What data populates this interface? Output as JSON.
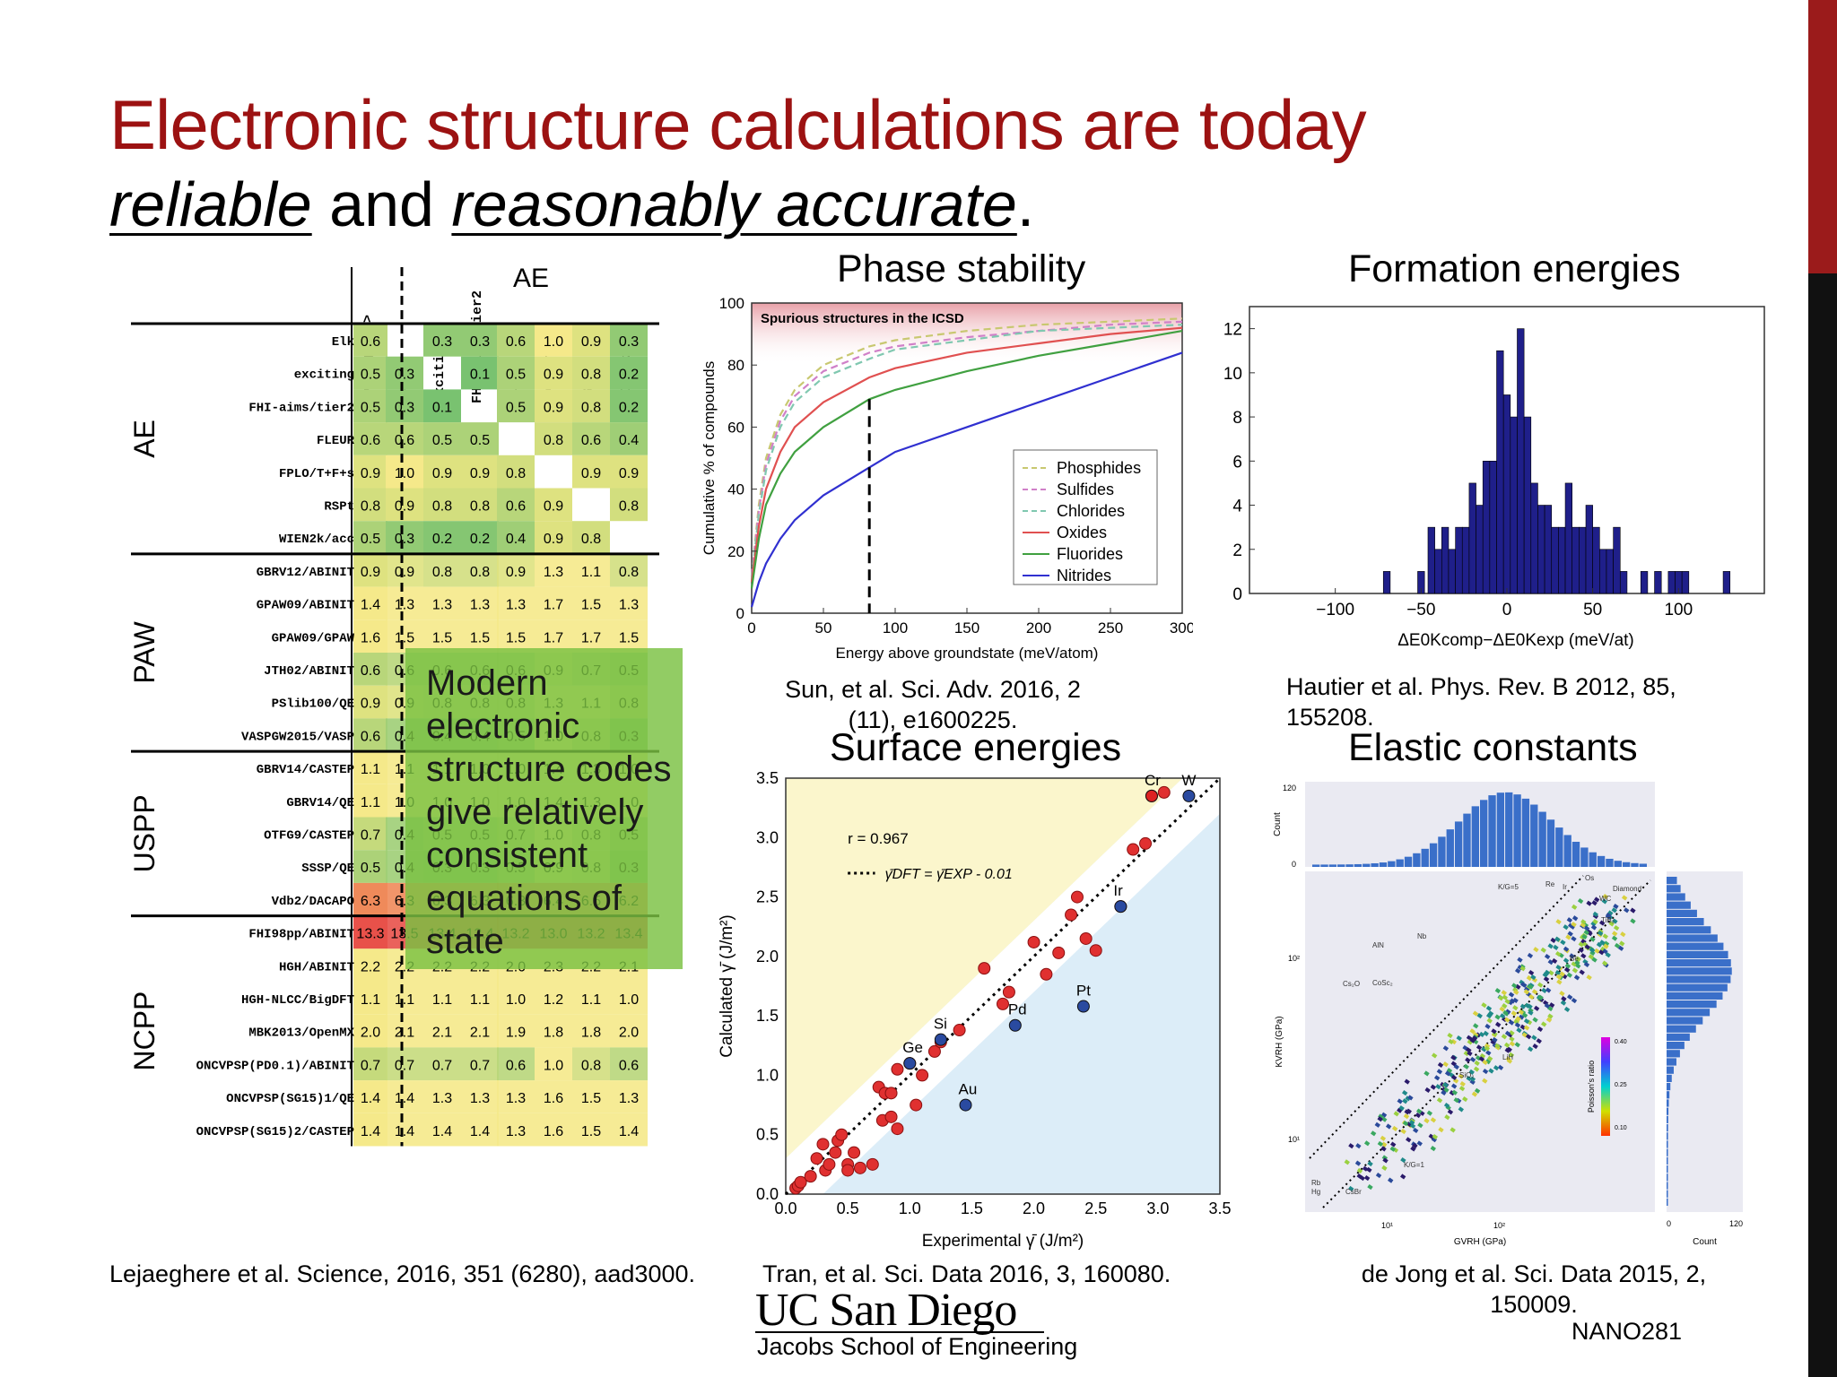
{
  "slide": {
    "title_line1": "Electronic structure calculations are today",
    "title_line2_part1": "reliable",
    "title_line2_part2": " and ",
    "title_line2_part3": "reasonably accurate",
    "title_line2_part4": ".",
    "page_label": "NANO281",
    "logo_main": "UC San Diego",
    "logo_sub": "Jacobs School of Engineering",
    "colors": {
      "title_red": "#9c1212",
      "callout_green": "#7ac142",
      "side_red": "#9b1b1b"
    }
  },
  "panels": {
    "phase": {
      "title": "Phase stability",
      "citation": "Sun, et al. Sci. Adv. 2016, 2 (11), e1600225."
    },
    "formation": {
      "title": "Formation energies",
      "citation": "Hautier et al.  Phys. Rev. B 2012, 85, 155208."
    },
    "surface": {
      "title": "Surface energies",
      "citation": "Tran, et al. Sci. Data 2016, 3, 160080."
    },
    "elastic": {
      "title": "Elastic constants",
      "citation": "de Jong et al. Sci. Data 2015, 2, 150009."
    },
    "table": {
      "citation": "Lejaeghere et al. Science, 2016, 351 (6280), aad3000."
    }
  },
  "callout": {
    "text": "Modern electronic structure codes give relatively consistent equations of state"
  },
  "eos_table": {
    "top_group": "AE",
    "columns": [
      "average <Δ>",
      "Elk",
      "exciting",
      "FHI-aims/tier2",
      "FLEUR",
      "FPLO/T+F+s",
      "RSPt",
      "WIEN2k/acc"
    ],
    "groups": [
      {
        "name": "AE",
        "rows": [
          {
            "code": "Elk",
            "avg": "0.6",
            "vals": [
              "",
              "0.3",
              "0.3",
              "0.6",
              "1.0",
              "0.9",
              "0.3"
            ]
          },
          {
            "code": "exciting",
            "avg": "0.5",
            "vals": [
              "0.3",
              "",
              "0.1",
              "0.5",
              "0.9",
              "0.8",
              "0.2"
            ]
          },
          {
            "code": "FHI-aims/tier2",
            "avg": "0.5",
            "vals": [
              "0.3",
              "0.1",
              "",
              "0.5",
              "0.9",
              "0.8",
              "0.2"
            ]
          },
          {
            "code": "FLEUR",
            "avg": "0.6",
            "vals": [
              "0.6",
              "0.5",
              "0.5",
              "",
              "0.8",
              "0.6",
              "0.4"
            ]
          },
          {
            "code": "FPLO/T+F+s",
            "avg": "0.9",
            "vals": [
              "1.0",
              "0.9",
              "0.9",
              "0.8",
              "",
              "0.9",
              "0.9"
            ]
          },
          {
            "code": "RSPt",
            "avg": "0.8",
            "vals": [
              "0.9",
              "0.8",
              "0.8",
              "0.6",
              "0.9",
              "",
              "0.8"
            ]
          },
          {
            "code": "WIEN2k/acc",
            "avg": "0.5",
            "vals": [
              "0.3",
              "0.2",
              "0.2",
              "0.4",
              "0.9",
              "0.8",
              ""
            ]
          }
        ]
      },
      {
        "name": "PAW",
        "rows": [
          {
            "code": "GBRV12/ABINIT",
            "avg": "0.9",
            "vals": [
              "0.9",
              "0.8",
              "0.8",
              "0.9",
              "1.3",
              "1.1",
              "0.8"
            ]
          },
          {
            "code": "GPAW09/ABINIT",
            "avg": "1.4",
            "vals": [
              "1.3",
              "1.3",
              "1.3",
              "1.3",
              "1.7",
              "1.5",
              "1.3"
            ]
          },
          {
            "code": "GPAW09/GPAW",
            "avg": "1.6",
            "vals": [
              "1.5",
              "1.5",
              "1.5",
              "1.5",
              "1.7",
              "1.7",
              "1.5"
            ]
          },
          {
            "code": "JTH02/ABINIT",
            "avg": "0.6",
            "vals": [
              "0.6",
              "0.6",
              "0.6",
              "0.6",
              "0.9",
              "0.7",
              "0.5"
            ]
          },
          {
            "code": "PSlib100/QE",
            "avg": "0.9",
            "vals": [
              "0.9",
              "0.8",
              "0.8",
              "0.8",
              "1.3",
              "1.1",
              "0.8"
            ]
          },
          {
            "code": "VASPGW2015/VASP",
            "avg": "0.6",
            "vals": [
              "0.4",
              "0.4",
              "0.4",
              "0.5",
              "1.0",
              "0.8",
              "0.3"
            ]
          }
        ]
      },
      {
        "name": "USPP",
        "rows": [
          {
            "code": "GBRV14/CASTEP",
            "avg": "1.1",
            "vals": [
              "1.1",
              "1.1",
              "1.0",
              "1.0",
              "1.4",
              "1.3",
              "1.0"
            ]
          },
          {
            "code": "GBRV14/QE",
            "avg": "1.1",
            "vals": [
              "1.0",
              "1.0",
              "1.0",
              "1.0",
              "1.4",
              "1.3",
              "1.0"
            ]
          },
          {
            "code": "OTFG9/CASTEP",
            "avg": "0.7",
            "vals": [
              "0.4",
              "0.5",
              "0.5",
              "0.7",
              "1.0",
              "0.8",
              "0.5"
            ]
          },
          {
            "code": "SSSP/QE",
            "avg": "0.5",
            "vals": [
              "0.4",
              "0.3",
              "0.3",
              "0.5",
              "0.9",
              "0.8",
              "0.3"
            ]
          },
          {
            "code": "Vdb2/DACAPO",
            "avg": "6.3",
            "vals": [
              "6.3",
              "6.3",
              "6.3",
              "6.3",
              "6.4",
              "6.5",
              "6.2"
            ]
          }
        ]
      },
      {
        "name": "NCPP",
        "rows": [
          {
            "code": "FHI98pp/ABINIT",
            "avg": "13.3",
            "vals": [
              "13.5",
              "13.4",
              "13.4",
              "13.2",
              "13.0",
              "13.2",
              "13.4"
            ]
          },
          {
            "code": "HGH/ABINIT",
            "avg": "2.2",
            "vals": [
              "2.2",
              "2.2",
              "2.2",
              "2.0",
              "2.3",
              "2.2",
              "2.1"
            ]
          },
          {
            "code": "HGH-NLCC/BigDFT",
            "avg": "1.1",
            "vals": [
              "1.1",
              "1.1",
              "1.1",
              "1.0",
              "1.2",
              "1.1",
              "1.0"
            ]
          },
          {
            "code": "MBK2013/OpenMX",
            "avg": "2.0",
            "vals": [
              "2.1",
              "2.1",
              "2.1",
              "1.9",
              "1.8",
              "1.8",
              "2.0"
            ]
          },
          {
            "code": "ONCVPSP(PD0.1)/ABINIT",
            "avg": "0.7",
            "vals": [
              "0.7",
              "0.7",
              "0.7",
              "0.6",
              "1.0",
              "0.8",
              "0.6"
            ]
          },
          {
            "code": "ONCVPSP(SG15)1/QE",
            "avg": "1.4",
            "vals": [
              "1.4",
              "1.3",
              "1.3",
              "1.3",
              "1.6",
              "1.5",
              "1.3"
            ]
          },
          {
            "code": "ONCVPSP(SG15)2/CASTEP",
            "avg": "1.4",
            "vals": [
              "1.4",
              "1.4",
              "1.4",
              "1.3",
              "1.6",
              "1.5",
              "1.4"
            ]
          }
        ]
      }
    ]
  },
  "chart_data": [
    {
      "id": "phase",
      "type": "line",
      "xlabel": "Energy above groundstate (meV/atom)",
      "ylabel": "Cumulative % of compounds",
      "xlim": [
        0,
        300
      ],
      "ylim": [
        0,
        100
      ],
      "xticks": [
        "0",
        "50",
        "100",
        "150",
        "200",
        "250",
        "300"
      ],
      "yticks": [
        "0",
        "20",
        "40",
        "60",
        "80",
        "100"
      ],
      "annotation": "Spurious structures in the ICSD",
      "marker_x": 82,
      "legend": "right",
      "series": [
        {
          "name": "Phosphides",
          "style": "dashed",
          "color": "#c8c870",
          "x": [
            0,
            5,
            10,
            20,
            30,
            50,
            82,
            100,
            150,
            200,
            250,
            300
          ],
          "y": [
            12,
            35,
            50,
            64,
            72,
            80,
            86,
            88,
            91,
            93,
            94,
            95
          ]
        },
        {
          "name": "Sulfides",
          "style": "dashed",
          "color": "#d080c8",
          "x": [
            0,
            5,
            10,
            20,
            30,
            50,
            82,
            100,
            150,
            200,
            250,
            300
          ],
          "y": [
            12,
            33,
            48,
            62,
            70,
            78,
            84,
            86,
            89,
            91,
            93,
            94
          ]
        },
        {
          "name": "Chlorides",
          "style": "dashed",
          "color": "#80c8b0",
          "x": [
            0,
            5,
            10,
            20,
            30,
            50,
            82,
            100,
            150,
            200,
            250,
            300
          ],
          "y": [
            11,
            32,
            46,
            60,
            68,
            76,
            82,
            85,
            88,
            91,
            92,
            93
          ]
        },
        {
          "name": "Oxides",
          "style": "solid",
          "color": "#e05050",
          "x": [
            0,
            5,
            10,
            20,
            30,
            50,
            82,
            100,
            150,
            200,
            250,
            300
          ],
          "y": [
            10,
            28,
            40,
            52,
            60,
            68,
            76,
            79,
            84,
            87,
            90,
            92
          ]
        },
        {
          "name": "Fluorides",
          "style": "solid",
          "color": "#40a040",
          "x": [
            0,
            5,
            10,
            20,
            30,
            50,
            82,
            100,
            150,
            200,
            250,
            300
          ],
          "y": [
            8,
            24,
            35,
            45,
            52,
            60,
            69,
            72,
            78,
            83,
            87,
            91
          ]
        },
        {
          "name": "Nitrides",
          "style": "solid",
          "color": "#3030d0",
          "x": [
            0,
            5,
            10,
            20,
            30,
            50,
            82,
            100,
            150,
            200,
            250,
            300
          ],
          "y": [
            2,
            10,
            16,
            24,
            30,
            38,
            47,
            52,
            60,
            68,
            76,
            84
          ]
        }
      ]
    },
    {
      "id": "formation",
      "type": "bar",
      "xlabel": "ΔE0Kcomp−ΔE0Kexp (meV/at)",
      "xlim": [
        -150,
        150
      ],
      "ylim": [
        0,
        13
      ],
      "xticks": [
        "−100",
        "−50",
        "0",
        "50",
        "100"
      ],
      "yticks": [
        "0",
        "2",
        "4",
        "6",
        "8",
        "10",
        "12"
      ],
      "bar_width": 4,
      "color": "#1f1f8a",
      "x": [
        -70,
        -50,
        -44,
        -40,
        -36,
        -32,
        -28,
        -24,
        -20,
        -16,
        -12,
        -8,
        -4,
        0,
        4,
        8,
        12,
        16,
        20,
        24,
        28,
        32,
        36,
        40,
        44,
        48,
        52,
        56,
        60,
        64,
        68,
        80,
        88,
        96,
        100,
        104,
        128
      ],
      "values": [
        1,
        1,
        3,
        2,
        3,
        2,
        3,
        3,
        5,
        4,
        6,
        6,
        11,
        9,
        8,
        12,
        8,
        5,
        4,
        4,
        3,
        3,
        5,
        3,
        3,
        4,
        3,
        2,
        2,
        3,
        1,
        1,
        1,
        1,
        1,
        1,
        1
      ]
    },
    {
      "id": "surface",
      "type": "scatter",
      "xlabel": "Experimental γ̄ (J/m²)",
      "ylabel": "Calculated γ̄ (J/m²)",
      "xlim": [
        0,
        3.5
      ],
      "ylim": [
        0,
        3.5
      ],
      "xticks": [
        "0.0",
        "0.5",
        "1.0",
        "1.5",
        "2.0",
        "2.5",
        "3.0",
        "3.5"
      ],
      "yticks": [
        "0.0",
        "0.5",
        "1.0",
        "1.5",
        "2.0",
        "2.5",
        "3.0",
        "3.5"
      ],
      "r_label": "r = 0.967",
      "fit_label": "γ̄DFT = γ̄EXP - 0.01",
      "red_points": {
        "x": [
          0.08,
          0.1,
          0.12,
          0.2,
          0.25,
          0.3,
          0.32,
          0.35,
          0.4,
          0.42,
          0.45,
          0.5,
          0.5,
          0.55,
          0.6,
          0.7,
          0.75,
          0.78,
          0.8,
          0.85,
          0.85,
          0.9,
          0.9,
          1.0,
          1.05,
          1.1,
          1.2,
          1.25,
          1.4,
          1.6,
          1.75,
          1.8,
          2.0,
          2.1,
          2.2,
          2.3,
          2.35,
          2.42,
          2.5,
          2.7,
          2.8,
          2.9,
          2.95,
          3.05
        ],
        "y": [
          0.05,
          0.07,
          0.1,
          0.15,
          0.3,
          0.42,
          0.2,
          0.25,
          0.35,
          0.45,
          0.5,
          0.25,
          0.2,
          0.35,
          0.22,
          0.25,
          0.9,
          0.62,
          0.85,
          0.85,
          0.65,
          0.55,
          1.05,
          1.1,
          0.75,
          1.0,
          1.2,
          1.28,
          1.38,
          1.9,
          1.6,
          1.7,
          2.12,
          1.85,
          2.03,
          2.35,
          2.5,
          2.15,
          2.05,
          2.42,
          2.9,
          2.95,
          3.35,
          3.38
        ]
      },
      "labeled_points": [
        {
          "label": "Cr",
          "x": 2.95,
          "y": 3.35,
          "color": "#dd2222"
        },
        {
          "label": "W",
          "x": 3.25,
          "y": 3.35,
          "color": "#2a4aa0"
        },
        {
          "label": "Ir",
          "x": 2.7,
          "y": 2.42,
          "color": "#2a4aa0"
        },
        {
          "label": "Pt",
          "x": 2.4,
          "y": 1.58,
          "color": "#2a4aa0"
        },
        {
          "label": "Pd",
          "x": 1.85,
          "y": 1.42,
          "color": "#2a4aa0"
        },
        {
          "label": "Si",
          "x": 1.25,
          "y": 1.3,
          "color": "#2a4aa0"
        },
        {
          "label": "Ge",
          "x": 1.0,
          "y": 1.1,
          "color": "#2a4aa0"
        },
        {
          "label": "Au",
          "x": 1.45,
          "y": 0.75,
          "color": "#2a4aa0"
        }
      ]
    },
    {
      "id": "elastic",
      "type": "scatter",
      "xlabel": "GVRH (GPa)",
      "ylabel": "KVRH (GPa)",
      "top_hist": {
        "ylabel": "Count",
        "yticks": [
          "0",
          "120"
        ]
      },
      "side_hist": {
        "xlabel": "Count",
        "xticks": [
          "0",
          "120"
        ]
      },
      "xticks": [
        "10¹",
        "10²"
      ],
      "yticks": [
        "10¹",
        "10²"
      ],
      "colorbar": {
        "label": "Poisson's ratio",
        "ticks": [
          "0.40",
          "0.25",
          "0.10"
        ]
      },
      "point_labels": [
        "K/G=5",
        "K/G=1",
        "Re",
        "Ir",
        "Os",
        "Diamond",
        "WC",
        "TiB₂",
        "Be",
        "AlN",
        "Nb",
        "Cs₂O",
        "CoSc₂",
        "LiH",
        "SiO₂",
        "Rb",
        "Hg",
        "CsBr"
      ]
    }
  ]
}
